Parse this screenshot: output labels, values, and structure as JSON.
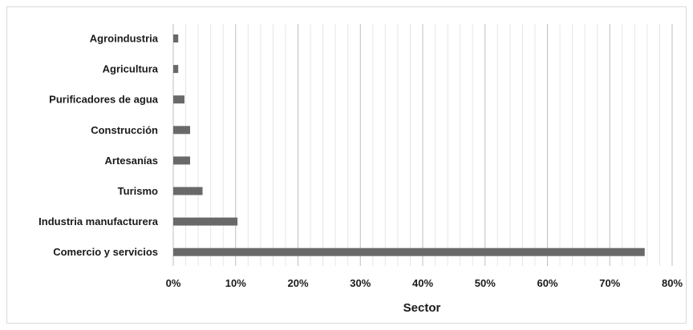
{
  "chart_data": {
    "type": "bar",
    "orientation": "horizontal",
    "categories": [
      "Agroindustria",
      "Agricultura",
      "Purificadores de agua",
      "Construcción",
      "Artesanías",
      "Turismo",
      "Industria manufacturera",
      "Comercio y servicios"
    ],
    "values": [
      0.8,
      0.8,
      1.8,
      2.7,
      2.7,
      4.7,
      10.3,
      75.6
    ],
    "xlabel": "Sector",
    "ylabel": "",
    "xlim": [
      0,
      80
    ],
    "major_ticks": [
      0,
      10,
      20,
      30,
      40,
      50,
      60,
      70,
      80
    ],
    "tick_labels": [
      "0%",
      "10%",
      "20%",
      "30%",
      "40%",
      "50%",
      "60%",
      "70%",
      "80%"
    ],
    "minor_tick_step": 2,
    "grid": true,
    "bar_color": "#696969",
    "major_grid_color": "#bfbfbf",
    "minor_grid_color": "#e6e6e6"
  }
}
